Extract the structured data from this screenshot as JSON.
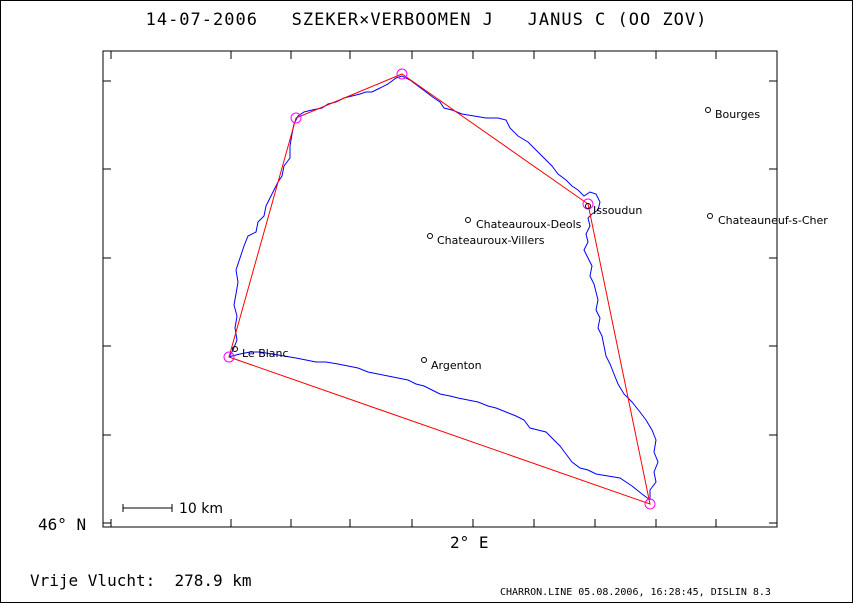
{
  "title": {
    "date": "14-07-2006",
    "pilots": "SZEKER×VERBOOMEN J",
    "aircraft": "JANUS C (OO ZOV)"
  },
  "axes": {
    "lat_label": "46° N",
    "lon_label": "2° E"
  },
  "scale_bar": {
    "label": "10 km"
  },
  "cities": [
    {
      "id": "bourges",
      "name": "Bourges"
    },
    {
      "id": "issoudun",
      "name": "Issoudun"
    },
    {
      "id": "chateauroux-deols",
      "name": "Chateauroux-Deols"
    },
    {
      "id": "chateauneuf",
      "name": "Chateauneuf-s-Cher"
    },
    {
      "id": "chateauroux-villers",
      "name": "Chateauroux-Villers"
    },
    {
      "id": "le-blanc",
      "name": "Le Blanc"
    },
    {
      "id": "argenton",
      "name": "Argenton"
    }
  ],
  "result": {
    "label": "Vrije Vlucht:",
    "distance": "278.9 km"
  },
  "footer": "CHARRON.LINE 05.08.2006, 16:28:45, DISLIN 8.3",
  "colors": {
    "track": "#0000ff",
    "task": "#ff0000",
    "turnpoint": "#ff00ff",
    "frame": "#000000"
  }
}
